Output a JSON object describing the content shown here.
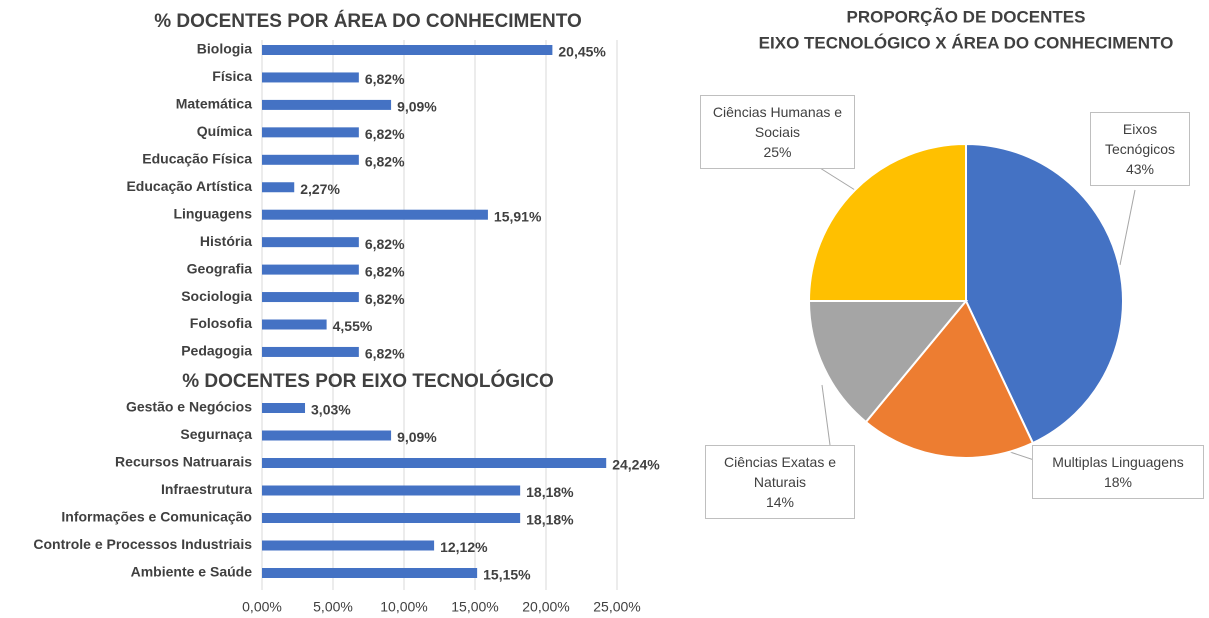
{
  "chart_data": [
    {
      "type": "barh",
      "title": "% DOCENTES POR ÁREA DO CONHECIMENTO",
      "color": "#4472c4",
      "categories": [
        "Biologia",
        "Física",
        "Matemática",
        "Química",
        "Educação Física",
        "Educação Artística",
        "Linguagens",
        "História",
        "Geografia",
        "Sociologia",
        "Folosofia",
        "Pedagogia"
      ],
      "values": [
        20.45,
        6.82,
        9.09,
        6.82,
        6.82,
        2.27,
        15.91,
        6.82,
        6.82,
        6.82,
        4.55,
        6.82
      ],
      "value_labels": [
        "20,45%",
        "6,82%",
        "9,09%",
        "6,82%",
        "6,82%",
        "2,27%",
        "15,91%",
        "6,82%",
        "6,82%",
        "6,82%",
        "4,55%",
        "6,82%"
      ],
      "xlim": [
        0,
        25
      ]
    },
    {
      "type": "barh",
      "title": "% DOCENTES POR EIXO TECNOLÓGICO",
      "color": "#4472c4",
      "categories": [
        "Gestão e Negócios",
        "Segurnaça",
        "Recursos Natruarais",
        "Infraestrutura",
        "Informações e Comunicação",
        "Controle e Processos Industriais",
        "Ambiente e Saúde"
      ],
      "values": [
        3.03,
        9.09,
        24.24,
        18.18,
        18.18,
        12.12,
        15.15
      ],
      "value_labels": [
        "3,03%",
        "9,09%",
        "24,24%",
        "18,18%",
        "18,18%",
        "12,12%",
        "15,15%"
      ],
      "xlim": [
        0,
        25
      ],
      "xticks": [
        {
          "value": 0,
          "label": "0,00%"
        },
        {
          "value": 5,
          "label": "5,00%"
        },
        {
          "value": 10,
          "label": "10,00%"
        },
        {
          "value": 15,
          "label": "15,00%"
        },
        {
          "value": 20,
          "label": "20,00%"
        },
        {
          "value": 25,
          "label": "25,00%"
        }
      ],
      "grid": true
    },
    {
      "type": "pie",
      "title": [
        "PROPORÇÃO DE DOCENTES",
        "EIXO TECNOLÓGICO X ÁREA DO CONHECIMENTO"
      ],
      "categories": [
        "Eixos Tecnógicos",
        "Multiplas Linguagens",
        "Ciências Exatas e Naturais",
        "Ciências Humanas e Sociais"
      ],
      "values": [
        43,
        18,
        14,
        25
      ],
      "value_labels": [
        "43%",
        "18%",
        "14%",
        "25%"
      ],
      "colors": [
        "#4472c4",
        "#ed7d31",
        "#a5a5a5",
        "#ffc000"
      ]
    }
  ]
}
